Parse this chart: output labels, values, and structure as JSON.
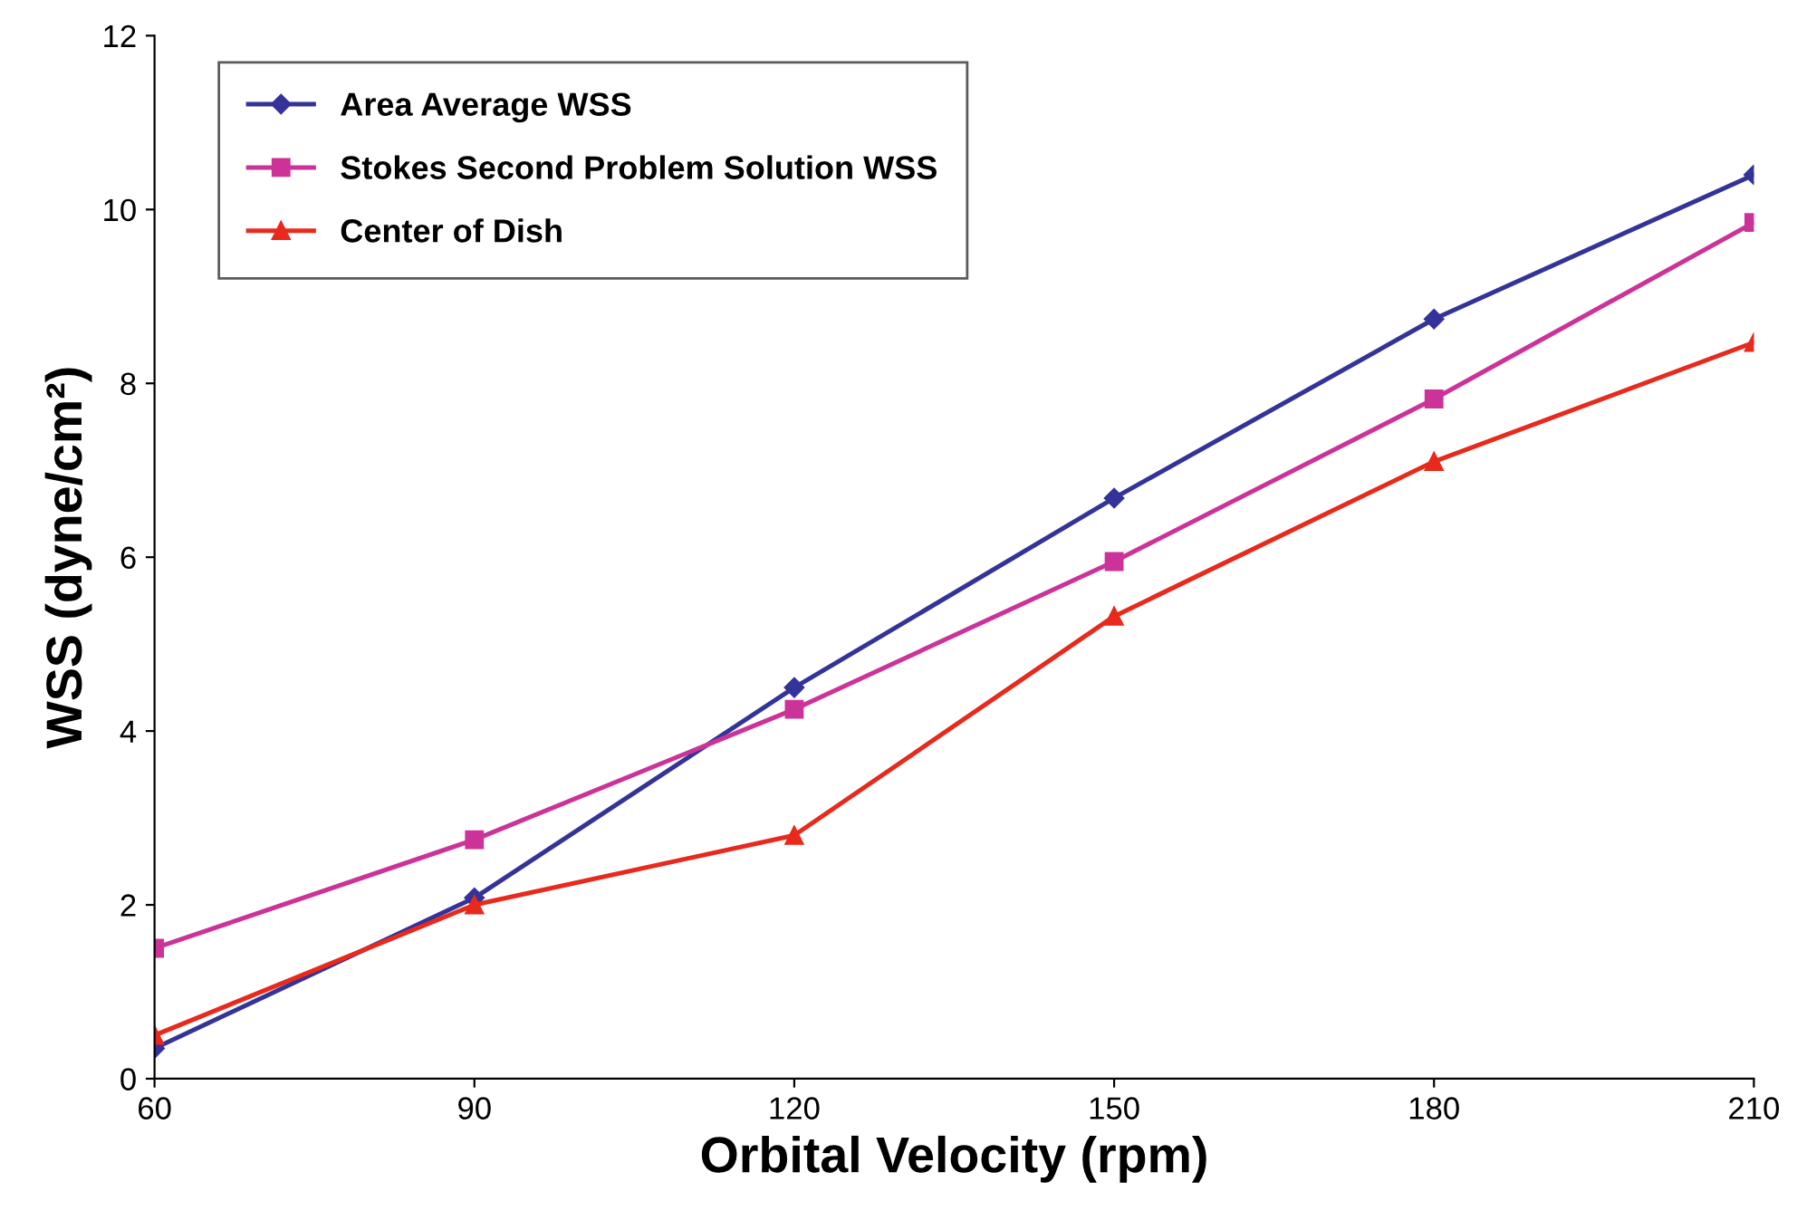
{
  "chart_data": {
    "type": "line",
    "xlabel": "Orbital Velocity (rpm)",
    "ylabel": "WSS (dyne/cm²)",
    "x": [
      60,
      90,
      120,
      150,
      180,
      210
    ],
    "xlim": [
      60,
      210
    ],
    "xticks": [
      60,
      90,
      120,
      150,
      180,
      210
    ],
    "ylim": [
      0,
      12
    ],
    "yticks": [
      0,
      2,
      4,
      6,
      8,
      10,
      12
    ],
    "grid": false,
    "legend": "top left",
    "line_style": "solid",
    "series": [
      {
        "name": "Area Average WSS",
        "color": "#333399",
        "marker": "diamond",
        "values": [
          0.35,
          2.08,
          4.5,
          6.68,
          8.74,
          10.4
        ]
      },
      {
        "name": "Stokes Second Problem Solution WSS",
        "color": "#cc3399",
        "marker": "square",
        "values": [
          1.5,
          2.75,
          4.25,
          5.95,
          7.82,
          9.85
        ]
      },
      {
        "name": "Center of Dish",
        "color": "#e8291c",
        "marker": "triangle",
        "values": [
          0.5,
          2.0,
          2.8,
          5.32,
          7.1,
          8.47
        ]
      }
    ]
  }
}
